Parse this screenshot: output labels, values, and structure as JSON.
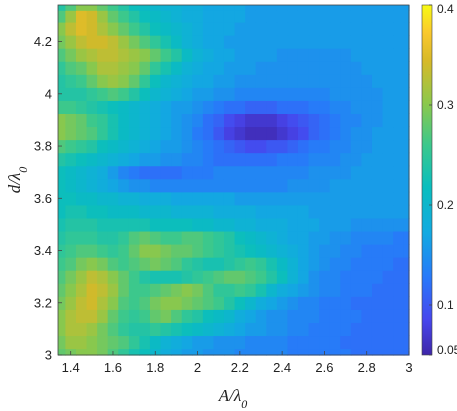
{
  "chart_data": {
    "type": "heatmap",
    "title": "",
    "xlabel": "A/λ0",
    "ylabel": "d/λ0",
    "xlim": [
      1.34,
      3.0
    ],
    "ylim": [
      3.0,
      4.34
    ],
    "x_ticks": [
      "1.4",
      "1.6",
      "1.8",
      "2",
      "2.2",
      "2.4",
      "2.6",
      "2.8",
      "3"
    ],
    "y_ticks": [
      "3",
      "3.2",
      "3.4",
      "3.6",
      "3.8",
      "4",
      "4.2"
    ],
    "colorbar": {
      "range": [
        0.05,
        0.4
      ],
      "ticks": [
        "0.05",
        "0.1",
        "0.2",
        "0.3",
        "0.4"
      ],
      "colormap": "parula"
    },
    "x": [
      1.35,
      1.4,
      1.45,
      1.5,
      1.55,
      1.6,
      1.65,
      1.7,
      1.75,
      1.8,
      1.85,
      1.9,
      1.95,
      2.0,
      2.05,
      2.1,
      2.15,
      2.2,
      2.25,
      2.3,
      2.35,
      2.4,
      2.45,
      2.5,
      2.55,
      2.6,
      2.65,
      2.7,
      2.75,
      2.8,
      2.85,
      2.9,
      2.95,
      3.0
    ],
    "y": [
      3.0,
      3.05,
      3.1,
      3.15,
      3.2,
      3.25,
      3.3,
      3.35,
      3.4,
      3.45,
      3.5,
      3.55,
      3.6,
      3.65,
      3.7,
      3.75,
      3.8,
      3.85,
      3.9,
      3.95,
      4.0,
      4.05,
      4.1,
      4.15,
      4.2,
      4.25,
      4.3,
      4.34
    ],
    "values": [
      [
        0.28,
        0.29,
        0.3,
        0.3,
        0.29,
        0.27,
        0.25,
        0.23,
        0.22,
        0.2,
        0.18,
        0.17,
        0.16,
        0.16,
        0.15,
        0.15,
        0.15,
        0.14,
        0.14,
        0.14,
        0.14,
        0.14,
        0.13,
        0.13,
        0.13,
        0.13,
        0.13,
        0.13,
        0.12,
        0.12,
        0.12,
        0.12,
        0.12,
        0.12
      ],
      [
        0.29,
        0.31,
        0.31,
        0.3,
        0.29,
        0.28,
        0.27,
        0.25,
        0.23,
        0.21,
        0.19,
        0.18,
        0.17,
        0.16,
        0.16,
        0.15,
        0.15,
        0.15,
        0.14,
        0.14,
        0.14,
        0.14,
        0.13,
        0.13,
        0.13,
        0.13,
        0.13,
        0.12,
        0.12,
        0.12,
        0.12,
        0.12,
        0.12,
        0.12
      ],
      [
        0.3,
        0.32,
        0.32,
        0.31,
        0.29,
        0.27,
        0.25,
        0.24,
        0.24,
        0.25,
        0.24,
        0.23,
        0.22,
        0.21,
        0.2,
        0.19,
        0.18,
        0.17,
        0.16,
        0.16,
        0.15,
        0.15,
        0.14,
        0.14,
        0.13,
        0.13,
        0.13,
        0.13,
        0.12,
        0.12,
        0.12,
        0.12,
        0.12,
        0.12
      ],
      [
        0.3,
        0.32,
        0.33,
        0.33,
        0.31,
        0.28,
        0.26,
        0.25,
        0.26,
        0.28,
        0.29,
        0.27,
        0.25,
        0.24,
        0.22,
        0.21,
        0.2,
        0.18,
        0.17,
        0.16,
        0.15,
        0.15,
        0.14,
        0.14,
        0.14,
        0.13,
        0.13,
        0.13,
        0.13,
        0.12,
        0.12,
        0.12,
        0.12,
        0.12
      ],
      [
        0.29,
        0.31,
        0.33,
        0.34,
        0.32,
        0.3,
        0.27,
        0.26,
        0.27,
        0.29,
        0.3,
        0.3,
        0.29,
        0.28,
        0.27,
        0.26,
        0.24,
        0.22,
        0.2,
        0.18,
        0.17,
        0.16,
        0.15,
        0.14,
        0.14,
        0.13,
        0.13,
        0.13,
        0.12,
        0.12,
        0.12,
        0.12,
        0.12,
        0.12
      ],
      [
        0.28,
        0.3,
        0.32,
        0.34,
        0.33,
        0.31,
        0.28,
        0.26,
        0.26,
        0.27,
        0.28,
        0.29,
        0.3,
        0.29,
        0.27,
        0.25,
        0.25,
        0.26,
        0.25,
        0.23,
        0.2,
        0.18,
        0.17,
        0.16,
        0.15,
        0.14,
        0.14,
        0.13,
        0.13,
        0.13,
        0.12,
        0.12,
        0.12,
        0.12
      ],
      [
        0.27,
        0.29,
        0.31,
        0.33,
        0.32,
        0.3,
        0.28,
        0.26,
        0.24,
        0.23,
        0.23,
        0.23,
        0.24,
        0.25,
        0.26,
        0.27,
        0.28,
        0.28,
        0.27,
        0.26,
        0.24,
        0.22,
        0.19,
        0.17,
        0.15,
        0.14,
        0.14,
        0.13,
        0.13,
        0.13,
        0.13,
        0.12,
        0.12,
        0.12
      ],
      [
        0.26,
        0.27,
        0.29,
        0.3,
        0.29,
        0.27,
        0.26,
        0.27,
        0.28,
        0.29,
        0.28,
        0.27,
        0.25,
        0.24,
        0.23,
        0.23,
        0.24,
        0.25,
        0.26,
        0.25,
        0.23,
        0.21,
        0.19,
        0.17,
        0.16,
        0.15,
        0.14,
        0.14,
        0.13,
        0.13,
        0.13,
        0.13,
        0.12,
        0.12
      ],
      [
        0.25,
        0.26,
        0.27,
        0.27,
        0.26,
        0.25,
        0.26,
        0.28,
        0.3,
        0.3,
        0.29,
        0.28,
        0.28,
        0.27,
        0.26,
        0.25,
        0.24,
        0.23,
        0.22,
        0.21,
        0.2,
        0.19,
        0.18,
        0.17,
        0.16,
        0.15,
        0.15,
        0.14,
        0.14,
        0.13,
        0.13,
        0.13,
        0.13,
        0.13
      ],
      [
        0.24,
        0.25,
        0.25,
        0.25,
        0.24,
        0.24,
        0.25,
        0.27,
        0.28,
        0.27,
        0.26,
        0.26,
        0.27,
        0.27,
        0.26,
        0.25,
        0.24,
        0.22,
        0.21,
        0.2,
        0.19,
        0.18,
        0.17,
        0.17,
        0.16,
        0.16,
        0.15,
        0.15,
        0.14,
        0.14,
        0.14,
        0.14,
        0.13,
        0.13
      ],
      [
        0.23,
        0.24,
        0.24,
        0.24,
        0.23,
        0.23,
        0.23,
        0.23,
        0.23,
        0.22,
        0.22,
        0.22,
        0.22,
        0.21,
        0.21,
        0.2,
        0.2,
        0.19,
        0.19,
        0.18,
        0.18,
        0.18,
        0.17,
        0.17,
        0.17,
        0.16,
        0.16,
        0.16,
        0.15,
        0.15,
        0.15,
        0.15,
        0.15,
        0.15
      ],
      [
        0.22,
        0.23,
        0.23,
        0.22,
        0.22,
        0.21,
        0.21,
        0.21,
        0.2,
        0.2,
        0.2,
        0.19,
        0.19,
        0.19,
        0.19,
        0.18,
        0.18,
        0.18,
        0.18,
        0.17,
        0.17,
        0.17,
        0.17,
        0.17,
        0.16,
        0.16,
        0.16,
        0.16,
        0.16,
        0.16,
        0.16,
        0.16,
        0.16,
        0.16
      ],
      [
        0.22,
        0.22,
        0.21,
        0.21,
        0.2,
        0.2,
        0.19,
        0.19,
        0.18,
        0.18,
        0.18,
        0.17,
        0.17,
        0.17,
        0.17,
        0.17,
        0.17,
        0.16,
        0.16,
        0.16,
        0.16,
        0.16,
        0.16,
        0.16,
        0.16,
        0.16,
        0.16,
        0.16,
        0.16,
        0.16,
        0.16,
        0.16,
        0.16,
        0.16
      ],
      [
        0.22,
        0.21,
        0.2,
        0.19,
        0.18,
        0.17,
        0.16,
        0.15,
        0.15,
        0.14,
        0.14,
        0.14,
        0.14,
        0.14,
        0.14,
        0.14,
        0.14,
        0.14,
        0.14,
        0.14,
        0.14,
        0.14,
        0.15,
        0.15,
        0.15,
        0.15,
        0.16,
        0.16,
        0.16,
        0.16,
        0.16,
        0.16,
        0.16,
        0.16
      ],
      [
        0.22,
        0.21,
        0.2,
        0.19,
        0.18,
        0.16,
        0.14,
        0.13,
        0.12,
        0.12,
        0.12,
        0.12,
        0.13,
        0.13,
        0.13,
        0.14,
        0.14,
        0.14,
        0.14,
        0.14,
        0.14,
        0.14,
        0.14,
        0.14,
        0.15,
        0.15,
        0.15,
        0.15,
        0.16,
        0.16,
        0.16,
        0.16,
        0.16,
        0.16
      ],
      [
        0.24,
        0.23,
        0.22,
        0.21,
        0.2,
        0.19,
        0.18,
        0.17,
        0.16,
        0.16,
        0.15,
        0.15,
        0.14,
        0.14,
        0.13,
        0.12,
        0.12,
        0.12,
        0.12,
        0.12,
        0.12,
        0.13,
        0.13,
        0.13,
        0.14,
        0.14,
        0.14,
        0.15,
        0.15,
        0.16,
        0.16,
        0.16,
        0.16,
        0.16
      ],
      [
        0.27,
        0.26,
        0.25,
        0.24,
        0.22,
        0.21,
        0.2,
        0.19,
        0.18,
        0.17,
        0.16,
        0.16,
        0.15,
        0.14,
        0.13,
        0.12,
        0.11,
        0.1,
        0.09,
        0.09,
        0.1,
        0.1,
        0.11,
        0.12,
        0.13,
        0.13,
        0.14,
        0.14,
        0.15,
        0.15,
        0.16,
        0.16,
        0.16,
        0.16
      ],
      [
        0.3,
        0.29,
        0.28,
        0.27,
        0.25,
        0.23,
        0.21,
        0.2,
        0.19,
        0.18,
        0.17,
        0.16,
        0.15,
        0.13,
        0.12,
        0.1,
        0.08,
        0.07,
        0.06,
        0.06,
        0.06,
        0.07,
        0.08,
        0.09,
        0.11,
        0.12,
        0.13,
        0.14,
        0.15,
        0.15,
        0.16,
        0.16,
        0.16,
        0.16
      ],
      [
        0.3,
        0.29,
        0.28,
        0.26,
        0.25,
        0.23,
        0.21,
        0.2,
        0.19,
        0.18,
        0.17,
        0.16,
        0.15,
        0.14,
        0.12,
        0.11,
        0.09,
        0.08,
        0.07,
        0.07,
        0.07,
        0.08,
        0.09,
        0.1,
        0.11,
        0.12,
        0.13,
        0.14,
        0.14,
        0.15,
        0.15,
        0.16,
        0.16,
        0.16
      ],
      [
        0.26,
        0.26,
        0.25,
        0.24,
        0.23,
        0.22,
        0.21,
        0.2,
        0.19,
        0.18,
        0.17,
        0.16,
        0.16,
        0.15,
        0.14,
        0.13,
        0.12,
        0.12,
        0.11,
        0.11,
        0.11,
        0.12,
        0.12,
        0.12,
        0.13,
        0.13,
        0.14,
        0.14,
        0.15,
        0.15,
        0.15,
        0.16,
        0.16,
        0.16
      ],
      [
        0.24,
        0.24,
        0.24,
        0.25,
        0.26,
        0.27,
        0.26,
        0.24,
        0.22,
        0.2,
        0.19,
        0.18,
        0.17,
        0.16,
        0.16,
        0.15,
        0.15,
        0.14,
        0.14,
        0.14,
        0.14,
        0.14,
        0.14,
        0.14,
        0.14,
        0.14,
        0.15,
        0.15,
        0.15,
        0.15,
        0.15,
        0.16,
        0.16,
        0.16
      ],
      [
        0.24,
        0.25,
        0.26,
        0.28,
        0.3,
        0.31,
        0.3,
        0.28,
        0.25,
        0.22,
        0.2,
        0.19,
        0.18,
        0.17,
        0.17,
        0.16,
        0.16,
        0.15,
        0.15,
        0.15,
        0.15,
        0.15,
        0.15,
        0.15,
        0.15,
        0.15,
        0.15,
        0.15,
        0.15,
        0.15,
        0.16,
        0.16,
        0.16,
        0.16
      ],
      [
        0.25,
        0.27,
        0.28,
        0.3,
        0.32,
        0.32,
        0.31,
        0.3,
        0.28,
        0.25,
        0.23,
        0.21,
        0.19,
        0.18,
        0.17,
        0.17,
        0.16,
        0.16,
        0.16,
        0.15,
        0.15,
        0.15,
        0.15,
        0.15,
        0.15,
        0.15,
        0.15,
        0.15,
        0.15,
        0.16,
        0.16,
        0.16,
        0.16,
        0.16
      ],
      [
        0.27,
        0.29,
        0.31,
        0.32,
        0.33,
        0.33,
        0.32,
        0.31,
        0.3,
        0.28,
        0.26,
        0.24,
        0.21,
        0.19,
        0.18,
        0.17,
        0.17,
        0.16,
        0.16,
        0.16,
        0.16,
        0.15,
        0.15,
        0.15,
        0.15,
        0.15,
        0.15,
        0.15,
        0.16,
        0.16,
        0.16,
        0.16,
        0.16,
        0.16
      ],
      [
        0.29,
        0.31,
        0.33,
        0.34,
        0.34,
        0.33,
        0.31,
        0.29,
        0.27,
        0.25,
        0.23,
        0.21,
        0.19,
        0.18,
        0.17,
        0.17,
        0.16,
        0.16,
        0.16,
        0.16,
        0.16,
        0.16,
        0.16,
        0.16,
        0.16,
        0.16,
        0.16,
        0.16,
        0.16,
        0.16,
        0.16,
        0.16,
        0.16,
        0.16
      ],
      [
        0.3,
        0.33,
        0.35,
        0.34,
        0.32,
        0.3,
        0.28,
        0.26,
        0.24,
        0.22,
        0.21,
        0.2,
        0.19,
        0.18,
        0.17,
        0.17,
        0.17,
        0.16,
        0.16,
        0.16,
        0.16,
        0.16,
        0.16,
        0.16,
        0.16,
        0.16,
        0.16,
        0.16,
        0.16,
        0.16,
        0.16,
        0.16,
        0.16,
        0.16
      ],
      [
        0.27,
        0.31,
        0.35,
        0.34,
        0.31,
        0.28,
        0.26,
        0.24,
        0.22,
        0.21,
        0.2,
        0.19,
        0.18,
        0.18,
        0.17,
        0.17,
        0.17,
        0.17,
        0.16,
        0.16,
        0.16,
        0.16,
        0.16,
        0.16,
        0.16,
        0.16,
        0.16,
        0.16,
        0.16,
        0.16,
        0.16,
        0.16,
        0.16,
        0.16
      ],
      [
        0.24,
        0.27,
        0.3,
        0.3,
        0.28,
        0.26,
        0.24,
        0.22,
        0.21,
        0.2,
        0.19,
        0.19,
        0.18,
        0.18,
        0.17,
        0.17,
        0.17,
        0.17,
        0.16,
        0.16,
        0.16,
        0.16,
        0.16,
        0.16,
        0.16,
        0.16,
        0.16,
        0.16,
        0.16,
        0.16,
        0.16,
        0.16,
        0.16,
        0.16
      ]
    ]
  }
}
